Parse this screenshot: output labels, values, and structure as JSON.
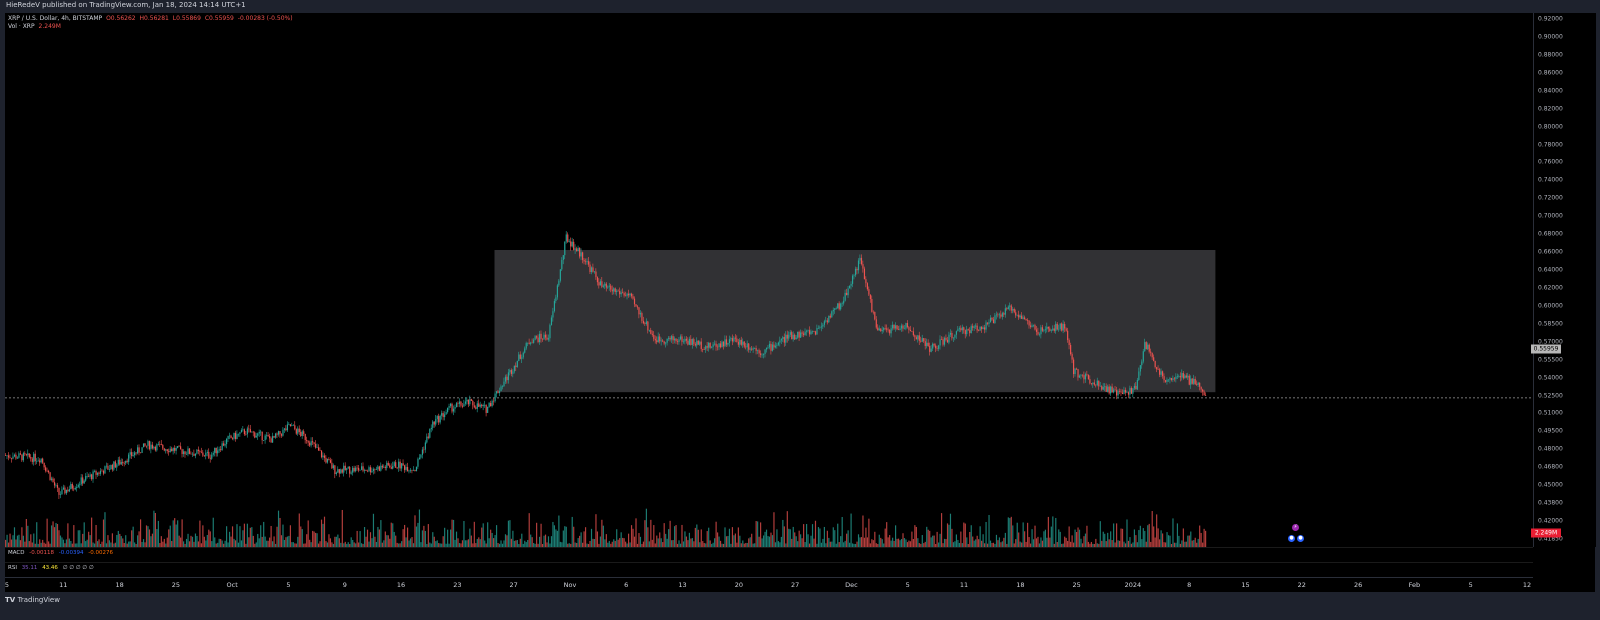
{
  "header": {
    "publish_text": "HieRedeV published on TradingView.com, Jan 18, 2024 14:14 UTC+1"
  },
  "legend": {
    "symbol": "XRP / U.S. Dollar, 4h, BITSTAMP",
    "open": "O0.56262",
    "high": "H0.56281",
    "low": "L0.55869",
    "close": "C0.55959",
    "change": "-0.00283 (-0.50%)",
    "vol_label": "Vol · XRP",
    "vol_value": "2.249M"
  },
  "macd": {
    "label": "MACD",
    "v1": "-0.00118",
    "v2": "-0.00394",
    "v3": "-0.00276"
  },
  "rsi": {
    "label": "RSI",
    "v1": "35.11",
    "v2": "43.46",
    "dots": "∅ ∅ ∅ ∅ ∅"
  },
  "price_axis": {
    "ticks": [
      "0.92000",
      "0.90000",
      "0.88000",
      "0.86000",
      "0.84000",
      "0.82000",
      "0.80000",
      "0.78000",
      "0.76000",
      "0.74000",
      "0.72000",
      "0.70000",
      "0.68000",
      "0.66000",
      "0.64000",
      "0.62000",
      "0.60000",
      "0.58500",
      "0.57000",
      "0.55500",
      "0.54000",
      "0.52500",
      "0.51000",
      "0.49500",
      "0.48000",
      "0.46800",
      "0.45000",
      "0.43800",
      "0.42000",
      "0.41850"
    ],
    "last_price": "0.55959",
    "volume_badge": "2.249M"
  },
  "time_axis": {
    "labels": [
      "5",
      "11",
      "18",
      "25",
      "Oct",
      "5",
      "9",
      "16",
      "23",
      "27",
      "Nov",
      "6",
      "13",
      "20",
      "27",
      "Dec",
      "5",
      "11",
      "18",
      "25",
      "2024",
      "8",
      "15",
      "22",
      "26",
      "Feb",
      "5",
      "12"
    ]
  },
  "footer": {
    "logo_text": "TradingView"
  },
  "colors": {
    "up": "#26a69a",
    "down": "#ef5350",
    "range_box": "#3a3a3d",
    "background": "#000000"
  },
  "chart_data": {
    "type": "candlestick",
    "title": "XRP / U.S. Dollar, 4h, BITSTAMP",
    "ylim": [
      0.418,
      0.925
    ],
    "range_box": {
      "start": "Oct 30",
      "end": "Jan 19",
      "top": 0.7,
      "bottom": 0.565
    },
    "last_price_line": 0.5596,
    "price_path": [
      {
        "date": "Sep 5",
        "price": 0.505
      },
      {
        "date": "Sep 9",
        "price": 0.502
      },
      {
        "date": "Sep 11",
        "price": 0.468
      },
      {
        "date": "Sep 14",
        "price": 0.483
      },
      {
        "date": "Sep 18",
        "price": 0.499
      },
      {
        "date": "Sep 21",
        "price": 0.515
      },
      {
        "date": "Sep 25",
        "price": 0.509
      },
      {
        "date": "Sep 28",
        "price": 0.505
      },
      {
        "date": "Sep 30",
        "price": 0.52
      },
      {
        "date": "Oct 2",
        "price": 0.528
      },
      {
        "date": "Oct 5",
        "price": 0.52
      },
      {
        "date": "Oct 7",
        "price": 0.533
      },
      {
        "date": "Oct 9",
        "price": 0.52
      },
      {
        "date": "Oct 12",
        "price": 0.491
      },
      {
        "date": "Oct 16",
        "price": 0.492
      },
      {
        "date": "Oct 19",
        "price": 0.496
      },
      {
        "date": "Oct 21",
        "price": 0.492
      },
      {
        "date": "Oct 23",
        "price": 0.535
      },
      {
        "date": "Oct 25",
        "price": 0.55
      },
      {
        "date": "Oct 27",
        "price": 0.555
      },
      {
        "date": "Oct 29",
        "price": 0.549
      },
      {
        "date": "Oct 31",
        "price": 0.575
      },
      {
        "date": "Nov 3",
        "price": 0.615
      },
      {
        "date": "Nov 5",
        "price": 0.618
      },
      {
        "date": "Nov 7",
        "price": 0.712
      },
      {
        "date": "Nov 9",
        "price": 0.692
      },
      {
        "date": "Nov 11",
        "price": 0.665
      },
      {
        "date": "Nov 14",
        "price": 0.657
      },
      {
        "date": "Nov 17",
        "price": 0.615
      },
      {
        "date": "Nov 20",
        "price": 0.615
      },
      {
        "date": "Nov 23",
        "price": 0.608
      },
      {
        "date": "Nov 26",
        "price": 0.615
      },
      {
        "date": "Nov 29",
        "price": 0.603
      },
      {
        "date": "Dec 2",
        "price": 0.618
      },
      {
        "date": "Dec 5",
        "price": 0.623
      },
      {
        "date": "Dec 8",
        "price": 0.65
      },
      {
        "date": "Dec 10",
        "price": 0.691
      },
      {
        "date": "Dec 12",
        "price": 0.622
      },
      {
        "date": "Dec 15",
        "price": 0.628
      },
      {
        "date": "Dec 18",
        "price": 0.606
      },
      {
        "date": "Dec 21",
        "price": 0.622
      },
      {
        "date": "Dec 24",
        "price": 0.628
      },
      {
        "date": "Dec 27",
        "price": 0.645
      },
      {
        "date": "Dec 30",
        "price": 0.622
      },
      {
        "date": "Jan 2",
        "price": 0.628
      },
      {
        "date": "Jan 3",
        "price": 0.585
      },
      {
        "date": "Jan 6",
        "price": 0.572
      },
      {
        "date": "Jan 8",
        "price": 0.563
      },
      {
        "date": "Jan 10",
        "price": 0.568
      },
      {
        "date": "Jan 11",
        "price": 0.612
      },
      {
        "date": "Jan 13",
        "price": 0.578
      },
      {
        "date": "Jan 15",
        "price": 0.58
      },
      {
        "date": "Jan 17",
        "price": 0.572
      },
      {
        "date": "Jan 18",
        "price": 0.5596
      }
    ]
  }
}
